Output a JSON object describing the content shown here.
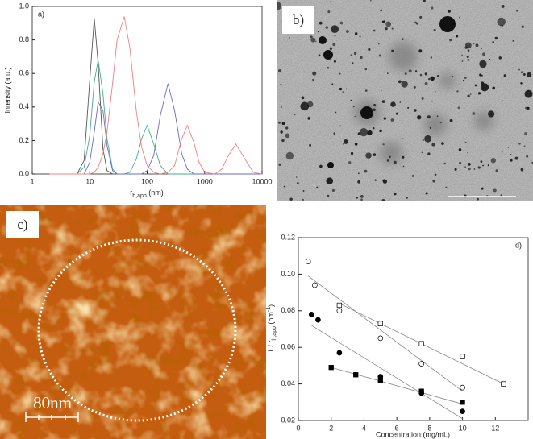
{
  "chart_data": [
    {
      "type": "line",
      "panel_label": "a)",
      "x_label": {
        "main": "r",
        "sub": "h,app",
        "rest": " (nm)"
      },
      "y_label": "Intensity (a.u.)",
      "xscale": "log",
      "xlim": [
        1,
        10000
      ],
      "xticks": [
        1,
        10,
        100,
        1000,
        10000
      ],
      "ylim": [
        0,
        1.0
      ],
      "yticks": [
        {
          "value": 0,
          "label": "0.0"
        },
        0.2,
        0.4,
        0.6,
        0.8,
        {
          "value": 1.0,
          "label": "1.0"
        }
      ],
      "x": [
        2,
        4,
        6,
        8,
        10,
        12,
        14,
        17,
        20,
        25,
        30,
        40,
        50,
        65,
        80,
        100,
        130,
        170,
        230,
        300,
        400,
        500,
        650,
        800,
        1000,
        1500,
        2000,
        2500,
        3500,
        5000,
        7000,
        10000
      ],
      "series": [
        {
          "color": "#555555",
          "values": [
            0,
            0,
            0,
            0.08,
            0.56,
            0.93,
            0.66,
            0.15,
            0.02,
            0,
            0,
            0,
            0,
            0,
            0,
            0,
            0,
            0,
            0,
            0,
            0,
            0,
            0,
            0,
            0,
            0,
            0,
            0,
            0,
            0,
            0,
            0
          ]
        },
        {
          "color": "#3fae8c",
          "values": [
            0,
            0,
            0,
            0.04,
            0.23,
            0.55,
            0.68,
            0.48,
            0.21,
            0.03,
            0,
            0,
            0.01,
            0.09,
            0.21,
            0.29,
            0.18,
            0.05,
            0,
            0,
            0,
            0,
            0,
            0,
            0,
            0,
            0,
            0,
            0,
            0,
            0,
            0
          ]
        },
        {
          "color": "#6b6bc4",
          "values": [
            0,
            0,
            0,
            0,
            0.07,
            0.25,
            0.43,
            0.38,
            0.17,
            0.02,
            0,
            0,
            0,
            0,
            0,
            0.02,
            0.11,
            0.35,
            0.54,
            0.38,
            0.12,
            0.03,
            0,
            0,
            0,
            0,
            0,
            0,
            0,
            0,
            0,
            0
          ]
        },
        {
          "color": "#f08080",
          "values": [
            0,
            0,
            0,
            0,
            0,
            0.01,
            0.04,
            0.12,
            0.25,
            0.54,
            0.8,
            0.94,
            0.75,
            0.37,
            0.16,
            0.05,
            0.01,
            0,
            0.01,
            0.05,
            0.21,
            0.29,
            0.19,
            0.07,
            0.01,
            0,
            0.03,
            0.1,
            0.18,
            0.09,
            0.01,
            0
          ]
        }
      ]
    },
    {
      "type": "scatter",
      "panel_label": "d)",
      "x_label": "Concentration (mg/mL)",
      "y_label": {
        "main": "1 / r",
        "sub": "h,app",
        "unit": " (nm",
        "sup": "-1",
        "close": ")"
      },
      "xlim": [
        0,
        14
      ],
      "xticks": [
        0,
        2,
        4,
        6,
        8,
        10,
        12
      ],
      "ylim": [
        0.02,
        0.12
      ],
      "yticks": [
        0.02,
        0.04,
        0.06,
        0.08,
        {
          "value": 0.1,
          "label": "0.10"
        },
        0.12
      ],
      "fit_color": "#888888",
      "series": [
        {
          "marker": "circle",
          "filled": false,
          "x": [
            0.6,
            1,
            2.5,
            5,
            7.5,
            10
          ],
          "values": [
            0.107,
            0.094,
            0.08,
            0.065,
            0.051,
            0.038
          ],
          "fit_x": [
            0.6,
            10
          ],
          "fit_values": [
            0.099,
            0.036
          ]
        },
        {
          "marker": "circle",
          "filled": true,
          "x": [
            0.8,
            1.2,
            2.5,
            5,
            7.5,
            10
          ],
          "values": [
            0.078,
            0.075,
            0.057,
            0.044,
            0.035,
            0.025
          ],
          "fit_x": [
            0.8,
            10
          ],
          "fit_values": [
            0.072,
            0.021
          ]
        },
        {
          "marker": "square",
          "filled": false,
          "x": [
            2.5,
            5,
            7.5,
            10,
            12.5
          ],
          "values": [
            0.083,
            0.073,
            0.062,
            0.055,
            0.04
          ],
          "fit_x": [
            2.5,
            12.5
          ],
          "fit_values": [
            0.084,
            0.04
          ]
        },
        {
          "marker": "square",
          "filled": true,
          "x": [
            2,
            3.5,
            5,
            7.5,
            10
          ],
          "values": [
            0.049,
            0.045,
            0.042,
            0.036,
            0.03
          ],
          "fit_x": [
            2,
            10
          ],
          "fit_values": [
            0.049,
            0.029
          ]
        }
      ]
    }
  ],
  "panels": {
    "b": {
      "label": "b)"
    },
    "c": {
      "label": "c)",
      "scale_bar": "80nm"
    }
  }
}
